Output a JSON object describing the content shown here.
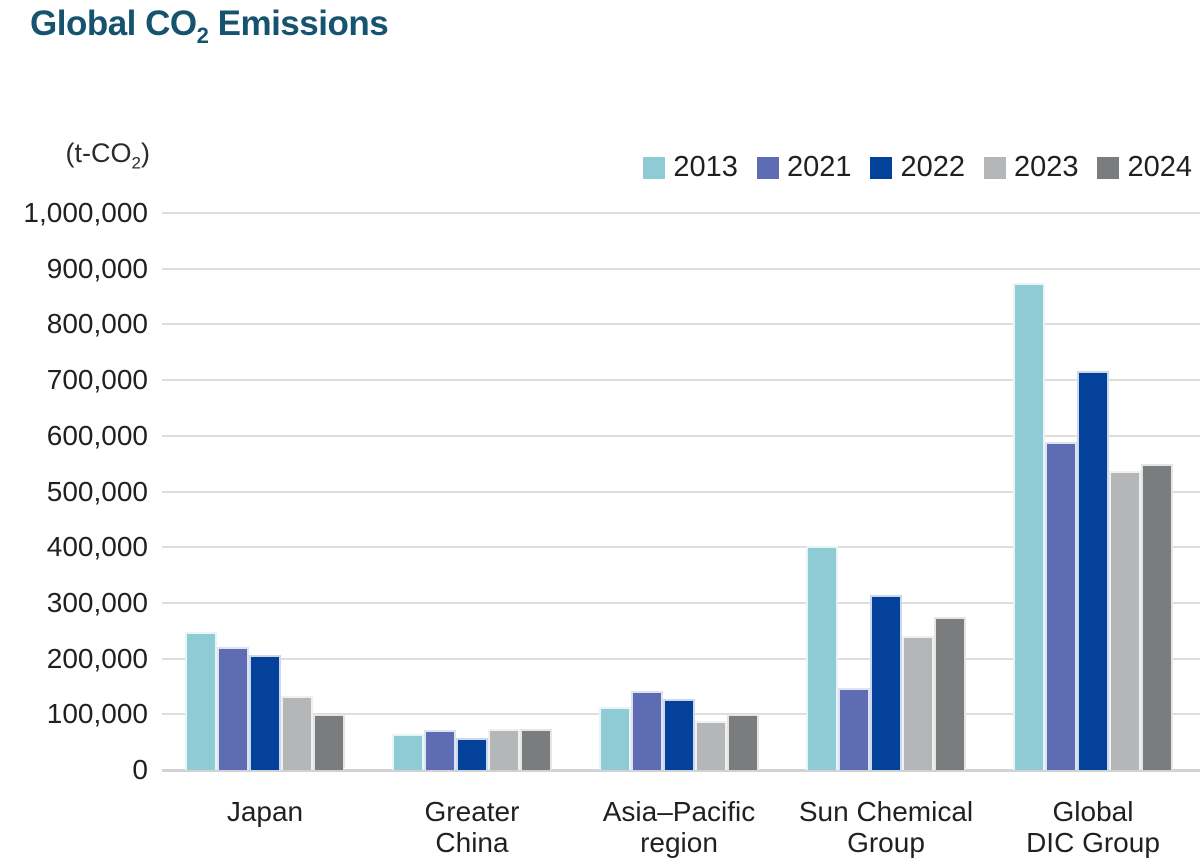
{
  "title": {
    "text": "Global CO₂ Emissions",
    "prefix": "Global CO",
    "sub": "2",
    "suffix": " Emissions"
  },
  "y_axis": {
    "unit": {
      "text": "(t-CO₂)",
      "prefix": "(t-CO",
      "sub": "2",
      "suffix": ")"
    },
    "tick_labels": [
      "1,000,000",
      "900,000",
      "800,000",
      "700,000",
      "600,000",
      "500,000",
      "400,000",
      "300,000",
      "200,000",
      "100,000",
      "0"
    ]
  },
  "colors": {
    "title": "#15536e",
    "text": "#231f20",
    "gridline": "#dedede",
    "axis_line": "#d0d2d3",
    "background": "#ffffff"
  },
  "chart_data": {
    "type": "bar",
    "title": "Global CO₂ Emissions",
    "ylabel": "(t-CO₂)",
    "xlabel": "",
    "ylim": [
      0,
      1000000
    ],
    "ytick_step": 100000,
    "grid": "horizontal",
    "legend_position": "top-right",
    "categories": [
      "Japan",
      "Greater China",
      "Asia–Pacific region",
      "Sun Chemical Group",
      "Global DIC Group"
    ],
    "category_lines": [
      [
        "Japan"
      ],
      [
        "Greater",
        "China"
      ],
      [
        "Asia–Pacific",
        "region"
      ],
      [
        "Sun Chemical",
        "Group"
      ],
      [
        "Global",
        "DIC Group"
      ]
    ],
    "series": [
      {
        "name": "2013",
        "color": "#8ecbd4",
        "values": [
          248000,
          65000,
          114000,
          402000,
          874000
        ]
      },
      {
        "name": "2021",
        "color": "#5e6db3",
        "values": [
          220000,
          72000,
          141000,
          148000,
          588000
        ]
      },
      {
        "name": "2022",
        "color": "#04419b",
        "values": [
          207000,
          58000,
          128000,
          314000,
          716000
        ]
      },
      {
        "name": "2023",
        "color": "#b5b6b7",
        "values": [
          133000,
          73000,
          88000,
          241000,
          537000
        ]
      },
      {
        "name": "2024",
        "color": "#7b7c7e",
        "values": [
          100000,
          73000,
          100000,
          275000,
          550000
        ]
      }
    ]
  }
}
